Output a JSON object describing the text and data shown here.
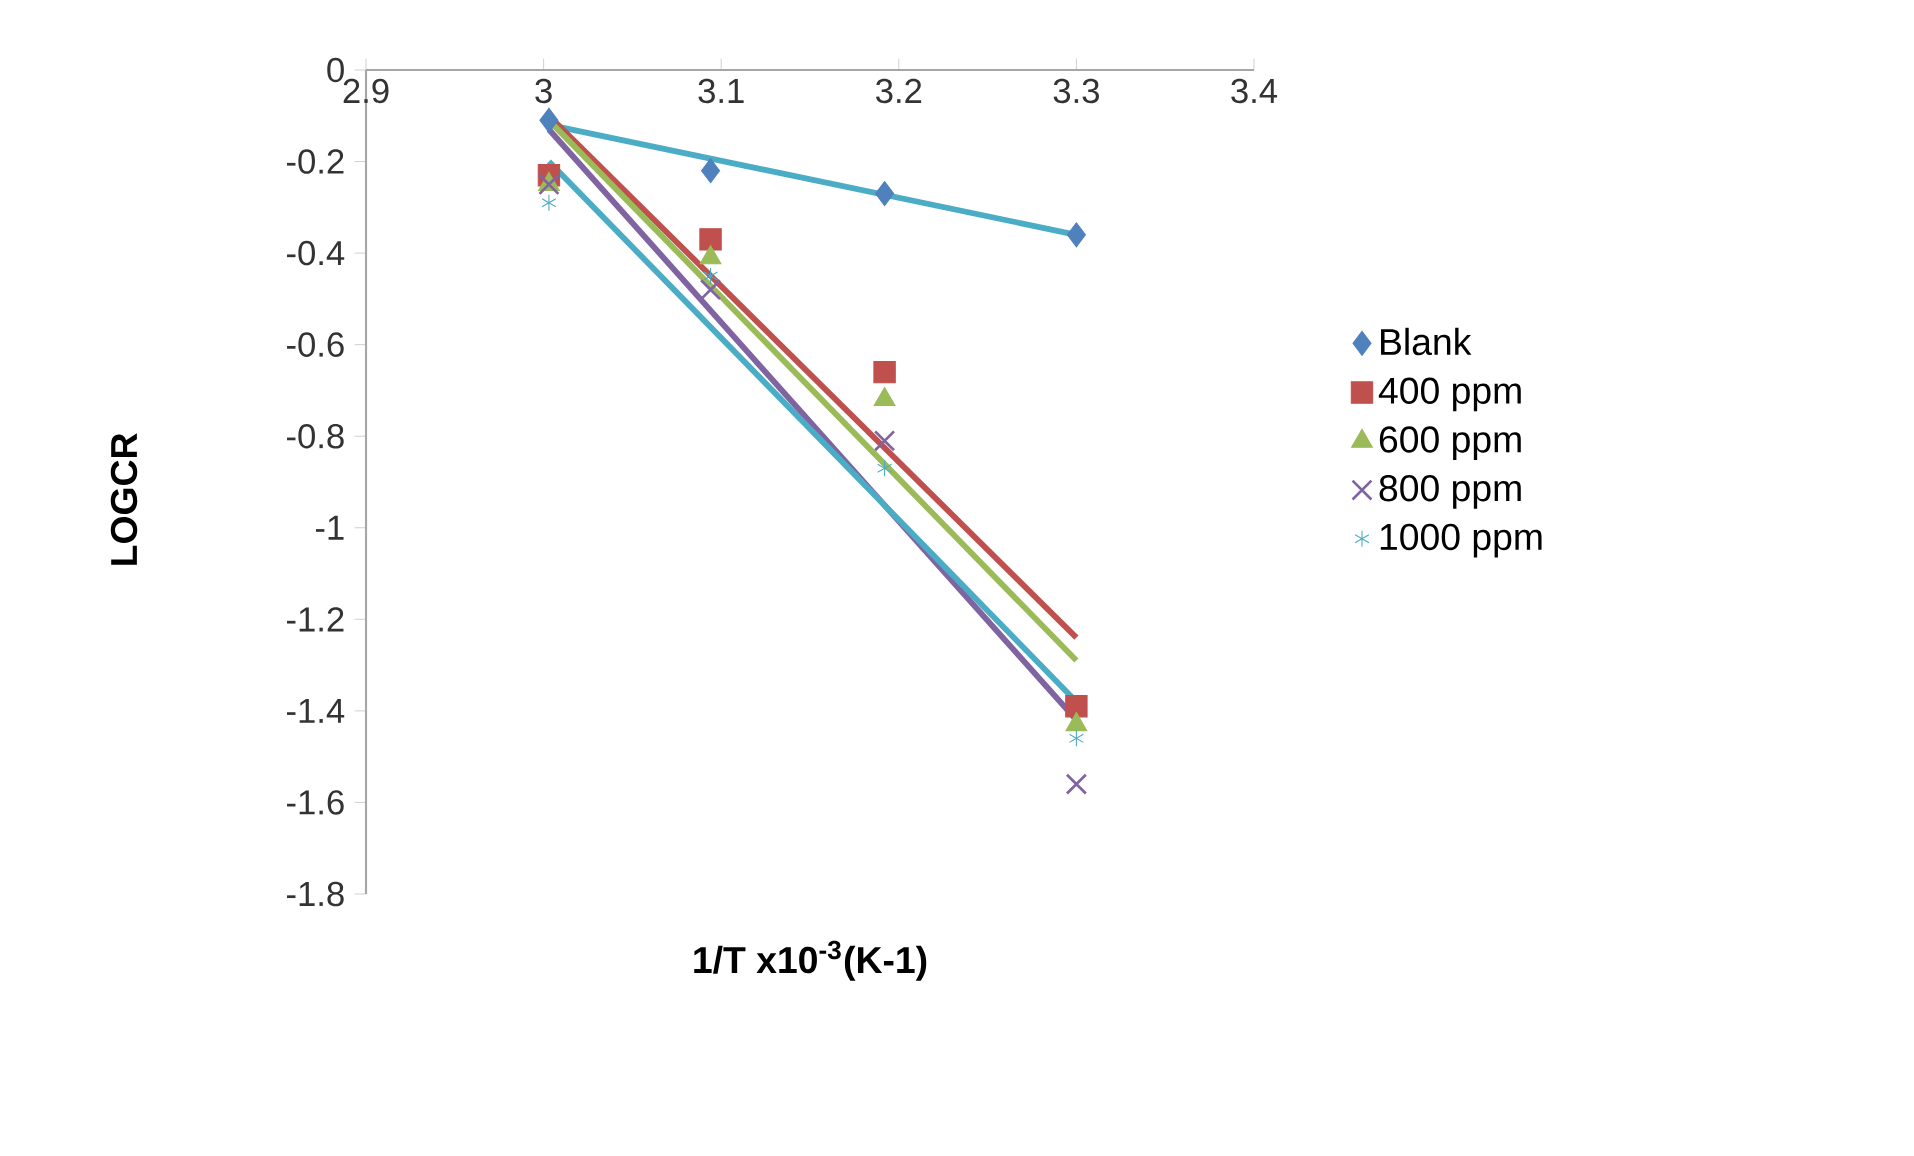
{
  "chart_data": {
    "type": "scatter",
    "xlabel": "1/T x10$^{-3}$(K-1)",
    "ylabel": "LOGCR",
    "xlim": [
      2.9,
      3.4
    ],
    "ylim": [
      -1.8,
      0
    ],
    "xticks": [
      2.9,
      3,
      3.1,
      3.2,
      3.3,
      3.4
    ],
    "yticks": [
      -1.8,
      -1.6,
      -1.4,
      -1.2,
      -1,
      -0.8,
      -0.6,
      -0.4,
      -0.2,
      0
    ],
    "grid": false,
    "legend": "right",
    "series": [
      {
        "name": "Blank",
        "color": "#4f81bd",
        "marker": "diamond",
        "x": [
          3.003,
          3.094,
          3.192,
          3.3
        ],
        "values": [
          -0.11,
          -0.22,
          -0.27,
          -0.36
        ]
      },
      {
        "name": "400 ppm",
        "color": "#c0504d",
        "marker": "square",
        "x": [
          3.003,
          3.094,
          3.192,
          3.3
        ],
        "values": [
          -0.23,
          -0.37,
          -0.66,
          -1.39
        ]
      },
      {
        "name": "600 ppm",
        "color": "#9bbb59",
        "marker": "triangle",
        "x": [
          3.003,
          3.094,
          3.192,
          3.3
        ],
        "values": [
          -0.25,
          -0.41,
          -0.72,
          -1.43
        ]
      },
      {
        "name": "800 ppm",
        "color": "#8064a2",
        "marker": "cross",
        "x": [
          3.003,
          3.094,
          3.192,
          3.3
        ],
        "values": [
          -0.25,
          -0.48,
          -0.81,
          -1.56
        ]
      },
      {
        "name": "1000 ppm",
        "color": "#4bacc6",
        "x": [
          3.003,
          3.094,
          3.192,
          3.3
        ],
        "values": [
          -0.29,
          -0.45,
          -0.87,
          -1.46
        ]
      },
      {
        "type": "line",
        "color": "#4bacc6",
        "marker": "none",
        "x": [
          3.003,
          3.3
        ],
        "values": [
          -0.12,
          -0.36
        ]
      },
      {
        "type": "line",
        "color": "#c0504d",
        "marker": "none",
        "x": [
          3.003,
          3.3
        ],
        "values": [
          -0.1,
          -1.24
        ]
      },
      {
        "type": "line",
        "color": "#9bbb59",
        "marker": "none",
        "x": [
          3.003,
          3.3
        ],
        "values": [
          -0.11,
          -1.29
        ]
      },
      {
        "type": "line",
        "color": "#8064a2",
        "marker": "none",
        "x": [
          3.003,
          3.3
        ],
        "values": [
          -0.13,
          -1.42
        ]
      },
      {
        "type": "line",
        "color": "#4bacc6",
        "marker": "none",
        "x": [
          3.003,
          3.3
        ],
        "values": [
          -0.2,
          -1.38
        ]
      }
    ]
  }
}
